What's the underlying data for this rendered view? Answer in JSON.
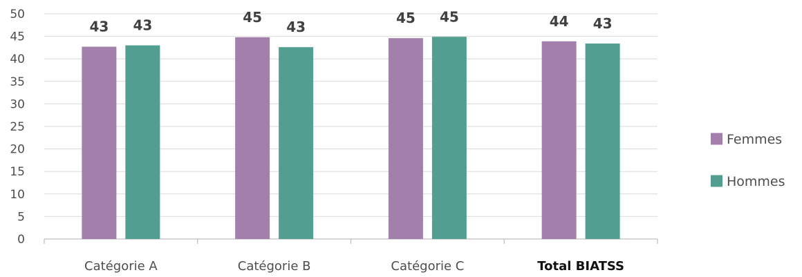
{
  "chart_data": {
    "type": "bar",
    "categories": [
      "Catégorie A",
      "Catégorie B",
      "Catégorie C",
      "Total BIATSS"
    ],
    "emphasized_category": "Total BIATSS",
    "series": [
      {
        "name": "Femmes",
        "color": "#a37fac",
        "values": [
          42.7,
          44.8,
          44.6,
          43.9
        ],
        "labels": [
          "43",
          "45",
          "45",
          "44"
        ]
      },
      {
        "name": "Hommes",
        "color": "#529f92",
        "values": [
          43.0,
          42.6,
          44.9,
          43.4
        ],
        "labels": [
          "43",
          "43",
          "45",
          "43"
        ]
      }
    ],
    "ylim": [
      0,
      50
    ],
    "yticks": [
      0,
      5,
      10,
      15,
      20,
      25,
      30,
      35,
      40,
      45,
      50
    ],
    "grid": true,
    "legend_position": "right"
  }
}
